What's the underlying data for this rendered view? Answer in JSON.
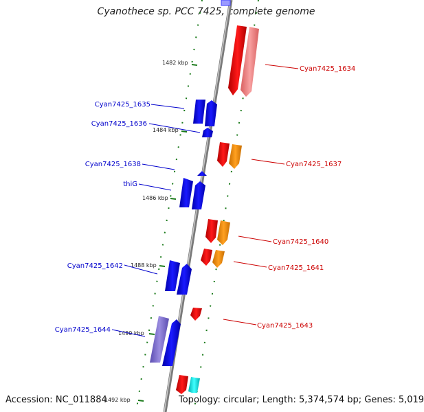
{
  "title": "Cyanothece sp. PCC 7425, complete genome",
  "accession": "Accession: NC_011884",
  "summary": "Topology: circular; Length: 5,374,574 bp; Genes: 5,019",
  "kbp_labels": [
    "1482 kbp",
    "1484 kbp",
    "1486 kbp",
    "1488 kbp",
    "1490 kbp",
    "1492 kbp"
  ],
  "forward_genes": [
    "Cyan7425_1635",
    "Cyan7425_1636",
    "Cyan7425_1638",
    "thiG",
    "Cyan7425_1642",
    "Cyan7425_1644"
  ],
  "reverse_genes": [
    "Cyan7425_1634",
    "Cyan7425_1637",
    "Cyan7425_1640",
    "Cyan7425_1641",
    "Cyan7425_1643"
  ],
  "colors": {
    "backbone": "#8a8a8a",
    "forward": "#0000ee",
    "reverse": "#ee0000",
    "orange": "#f28c00",
    "light_red": "#f08080",
    "purple": "#7a6cc8",
    "cyan": "#00e5e5",
    "tick": "#1a7a1a",
    "leader_blue": "#0000cc",
    "leader_red": "#cc0000"
  }
}
